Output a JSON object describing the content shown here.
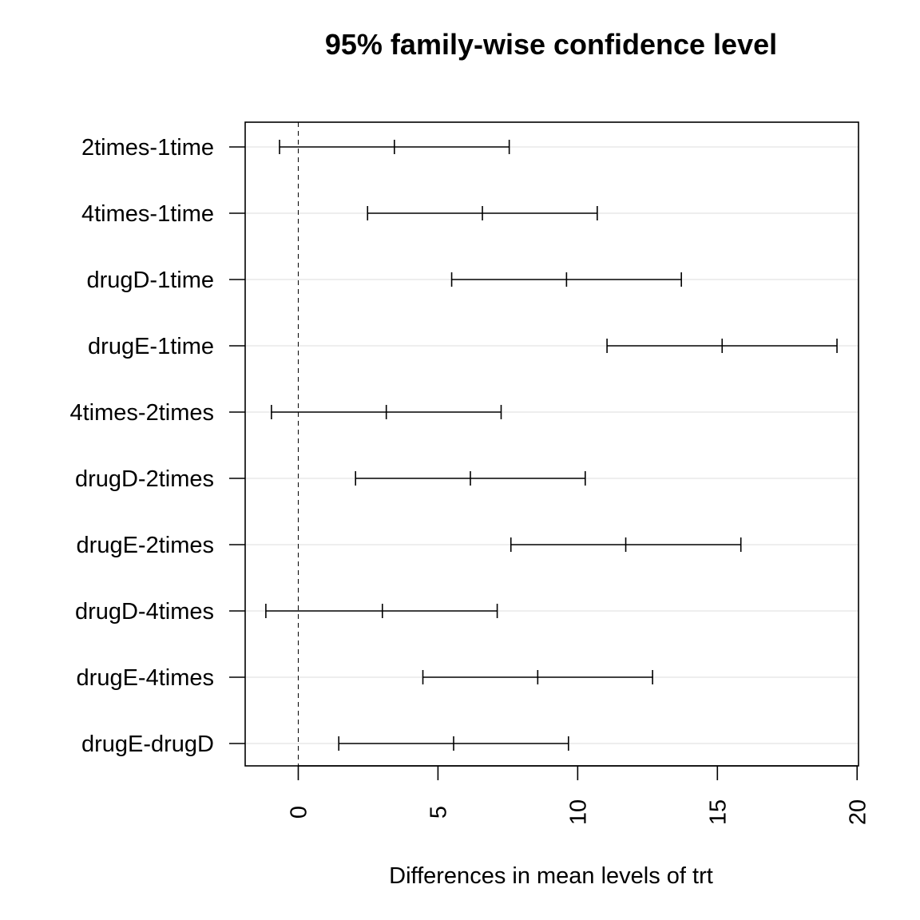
{
  "chart_data": {
    "type": "interval",
    "title": "95% family-wise confidence level",
    "xlabel": "Differences in mean levels of trt",
    "ylabel": "",
    "xlim": [
      -1.9,
      20.05
    ],
    "xticks": [
      0,
      5,
      10,
      15,
      20
    ],
    "reference_line": 0,
    "grid": true,
    "comparisons": [
      {
        "label": "2times-1time",
        "lwr": -0.67,
        "diff": 3.44,
        "upr": 7.55
      },
      {
        "label": "4times-1time",
        "lwr": 2.48,
        "diff": 6.59,
        "upr": 10.7
      },
      {
        "label": "drugD-1time",
        "lwr": 5.49,
        "diff": 9.6,
        "upr": 13.71
      },
      {
        "label": "drugE-1time",
        "lwr": 11.05,
        "diff": 15.17,
        "upr": 19.28
      },
      {
        "label": "4times-2times",
        "lwr": -0.96,
        "diff": 3.15,
        "upr": 7.26
      },
      {
        "label": "drugD-2times",
        "lwr": 2.05,
        "diff": 6.16,
        "upr": 10.27
      },
      {
        "label": "drugE-2times",
        "lwr": 7.61,
        "diff": 11.72,
        "upr": 15.84
      },
      {
        "label": "drugD-4times",
        "lwr": -1.16,
        "diff": 3.01,
        "upr": 7.12
      },
      {
        "label": "drugE-4times",
        "lwr": 4.46,
        "diff": 8.57,
        "upr": 12.68
      },
      {
        "label": "drugE-drugD",
        "lwr": 1.45,
        "diff": 5.56,
        "upr": 9.67
      }
    ]
  }
}
